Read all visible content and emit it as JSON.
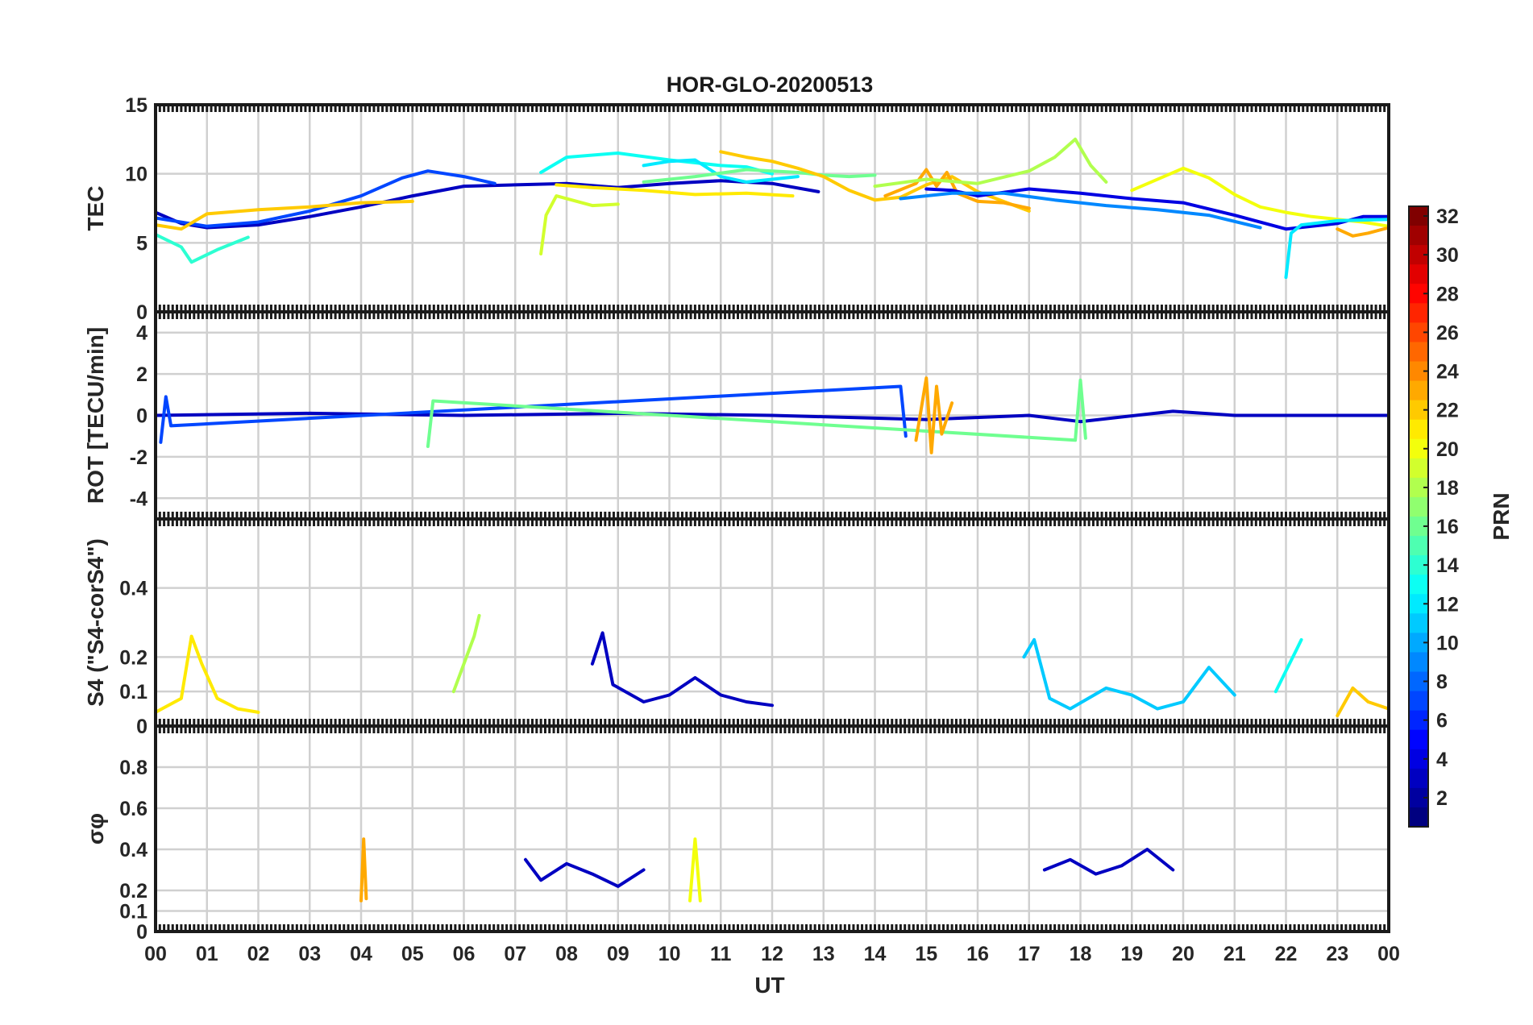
{
  "chart_data": {
    "type": "line",
    "title": "HOR-GLO-20200513",
    "xlabel": "UT",
    "x_range_hours": [
      0,
      24
    ],
    "x_tick_labels": [
      "00",
      "01",
      "02",
      "03",
      "04",
      "05",
      "06",
      "07",
      "08",
      "09",
      "10",
      "11",
      "12",
      "13",
      "14",
      "15",
      "16",
      "17",
      "18",
      "19",
      "20",
      "21",
      "22",
      "23",
      "00"
    ],
    "colorbar": {
      "label": "PRN",
      "range": [
        1,
        32
      ],
      "ticks": [
        2,
        4,
        6,
        8,
        10,
        12,
        14,
        16,
        18,
        20,
        22,
        24,
        26,
        28,
        30,
        32
      ],
      "colormap": "jet"
    },
    "panels": [
      {
        "id": "tec",
        "ylabel": "TEC",
        "ylim": [
          0,
          15
        ],
        "yticks": [
          0,
          5,
          10,
          15
        ],
        "series": [
          {
            "prn": 3,
            "x": [
              0.0,
              0.5,
              1.0,
              2.0,
              3.0,
              4.0,
              5.0,
              6.0,
              7.0,
              8.0,
              9.0,
              10.0,
              11.0,
              12.0,
              12.9
            ],
            "y": [
              7.2,
              6.4,
              6.1,
              6.3,
              6.9,
              7.6,
              8.4,
              9.1,
              9.2,
              9.3,
              9.0,
              9.3,
              9.5,
              9.3,
              8.7
            ]
          },
          {
            "prn": 7,
            "x": [
              0.0,
              1.0,
              2.0,
              3.0,
              4.0,
              4.8,
              5.3,
              6.0,
              6.6
            ],
            "y": [
              6.8,
              6.2,
              6.5,
              7.3,
              8.4,
              9.7,
              10.2,
              9.8,
              9.3
            ]
          },
          {
            "prn": 13,
            "x": [
              7.5,
              8.0,
              9.0,
              10.0,
              11.0,
              11.5,
              12.0
            ],
            "y": [
              10.1,
              11.2,
              11.5,
              11.0,
              10.6,
              10.5,
              10.0
            ]
          },
          {
            "prn": 12,
            "x": [
              9.5,
              10.0,
              10.5,
              11.0,
              11.5,
              12.0,
              12.5
            ],
            "y": [
              10.6,
              10.9,
              11.0,
              9.8,
              9.4,
              9.6,
              9.8
            ]
          },
          {
            "prn": 16,
            "x": [
              9.5,
              10.5,
              11.5,
              12.5,
              13.0,
              13.5,
              14.0
            ],
            "y": [
              9.4,
              9.8,
              10.3,
              10.1,
              9.9,
              9.8,
              9.9
            ]
          },
          {
            "prn": 21,
            "x": [
              7.8,
              8.5,
              9.5,
              10.5,
              11.5,
              12.4
            ],
            "y": [
              9.2,
              9.0,
              8.8,
              8.5,
              8.6,
              8.4
            ]
          },
          {
            "prn": 19,
            "x": [
              7.5,
              7.6,
              7.8,
              8.5,
              9.0
            ],
            "y": [
              4.2,
              7.0,
              8.4,
              7.7,
              7.8
            ]
          },
          {
            "prn": 22,
            "x": [
              11.0,
              11.5,
              12.0,
              12.5,
              13.0,
              13.5,
              14.0,
              14.5,
              15.0,
              15.5,
              16.0,
              16.5,
              17.0
            ],
            "y": [
              11.6,
              11.2,
              10.9,
              10.4,
              9.8,
              8.8,
              8.1,
              8.3,
              9.2,
              9.8,
              8.7,
              8.0,
              7.3
            ]
          },
          {
            "prn": 23,
            "x": [
              14.2,
              14.8,
              15.0,
              15.2,
              15.4,
              15.6,
              16.0,
              16.5,
              17.0
            ],
            "y": [
              8.4,
              9.3,
              10.3,
              9.1,
              10.1,
              8.6,
              8.0,
              7.9,
              7.5
            ]
          },
          {
            "prn": 18,
            "x": [
              14.0,
              15.0,
              16.0,
              17.0,
              17.5,
              17.9,
              18.2,
              18.5
            ],
            "y": [
              9.1,
              9.6,
              9.3,
              10.2,
              11.2,
              12.5,
              10.6,
              9.4
            ]
          },
          {
            "prn": 4,
            "x": [
              15.0,
              15.5,
              16.0,
              17.0,
              18.0,
              19.0,
              20.0,
              21.0,
              22.0,
              23.0,
              23.5,
              24.0
            ],
            "y": [
              8.9,
              8.8,
              8.4,
              8.9,
              8.6,
              8.2,
              7.9,
              7.0,
              6.0,
              6.4,
              6.9,
              6.9
            ]
          },
          {
            "prn": 9,
            "x": [
              14.5,
              15.5,
              16.5,
              17.5,
              18.5,
              19.5,
              20.5,
              21.5
            ],
            "y": [
              8.2,
              8.6,
              8.6,
              8.1,
              7.7,
              7.4,
              7.0,
              6.1
            ]
          },
          {
            "prn": 20,
            "x": [
              19.0,
              20.0,
              20.5,
              21.0,
              21.5,
              22.0,
              22.5,
              23.0,
              23.5,
              24.0
            ],
            "y": [
              8.8,
              10.4,
              9.7,
              8.5,
              7.6,
              7.2,
              6.9,
              6.7,
              6.5,
              6.2
            ]
          },
          {
            "prn": 12,
            "x": [
              22.0,
              22.1,
              22.3,
              23.0,
              24.0
            ],
            "y": [
              2.5,
              5.7,
              6.3,
              6.6,
              6.7
            ]
          },
          {
            "prn": 14,
            "x": [
              0.0,
              0.5,
              0.7,
              1.2,
              1.8
            ],
            "y": [
              5.6,
              4.7,
              3.6,
              4.5,
              5.4
            ]
          },
          {
            "prn": 22,
            "x": [
              0.0,
              0.5,
              1.0,
              2.0,
              3.0,
              4.0,
              5.0
            ],
            "y": [
              6.3,
              6.0,
              7.1,
              7.4,
              7.6,
              7.9,
              8.0
            ]
          },
          {
            "prn": 23,
            "x": [
              23.0,
              23.3,
              23.6,
              24.0
            ],
            "y": [
              6.0,
              5.5,
              5.7,
              6.1
            ]
          }
        ]
      },
      {
        "id": "rot",
        "ylabel": "ROT [TECU/min]",
        "ylim": [
          -5,
          5
        ],
        "yticks": [
          -4,
          -2,
          0,
          2,
          4
        ],
        "series": [
          {
            "prn": 3,
            "x": [
              0,
              3,
              6,
              9,
              12,
              15,
              17,
              18,
              19.8,
              21,
              24
            ],
            "y": [
              0,
              0.1,
              0,
              0.1,
              0,
              -0.2,
              0,
              -0.3,
              0.2,
              0,
              0
            ]
          },
          {
            "prn": 7,
            "x": [
              0.1,
              0.2,
              0.3,
              14.5,
              14.6
            ],
            "y": [
              -1.3,
              0.9,
              -0.5,
              1.4,
              -1.0
            ]
          },
          {
            "prn": 16,
            "x": [
              5.3,
              5.4,
              17.9,
              18.0,
              18.1
            ],
            "y": [
              -1.5,
              0.7,
              -1.2,
              1.7,
              -1.1
            ]
          },
          {
            "prn": 23,
            "x": [
              14.8,
              15.0,
              15.1,
              15.2,
              15.3,
              15.5
            ],
            "y": [
              -1.2,
              1.8,
              -1.8,
              1.4,
              -0.9,
              0.6
            ]
          }
        ]
      },
      {
        "id": "s4",
        "ylabel": "S4 (\"S4-corS4\")",
        "ylim": [
          0,
          0.6
        ],
        "yticks": [
          0,
          0.1,
          0.2,
          0.4
        ],
        "series": [
          {
            "prn": 21,
            "x": [
              0.0,
              0.5,
              0.7,
              0.9,
              1.2,
              1.6,
              2.0
            ],
            "y": [
              0.04,
              0.08,
              0.26,
              0.18,
              0.08,
              0.05,
              0.04
            ]
          },
          {
            "prn": 18,
            "x": [
              5.8,
              6.0,
              6.2,
              6.3
            ],
            "y": [
              0.1,
              0.18,
              0.26,
              0.32
            ]
          },
          {
            "prn": 3,
            "x": [
              8.5,
              8.7,
              8.9,
              9.5,
              10.0,
              10.5,
              11.0,
              11.5,
              12.0
            ],
            "y": [
              0.18,
              0.27,
              0.12,
              0.07,
              0.09,
              0.14,
              0.09,
              0.07,
              0.06
            ]
          },
          {
            "prn": 11,
            "x": [
              16.9,
              17.1,
              17.4,
              17.8,
              18.5,
              19.0,
              19.5,
              20.0,
              20.5,
              21.0
            ],
            "y": [
              0.2,
              0.25,
              0.08,
              0.05,
              0.11,
              0.09,
              0.05,
              0.07,
              0.17,
              0.09
            ]
          },
          {
            "prn": 13,
            "x": [
              21.8,
              22.0,
              22.2,
              22.3
            ],
            "y": [
              0.1,
              0.16,
              0.22,
              0.25
            ]
          },
          {
            "prn": 22,
            "x": [
              23.0,
              23.3,
              23.6,
              24.0
            ],
            "y": [
              0.03,
              0.11,
              0.07,
              0.05
            ]
          }
        ]
      },
      {
        "id": "sigma",
        "ylabel": "σφ",
        "ylim": [
          0,
          1.0
        ],
        "yticks": [
          0,
          0.1,
          0.2,
          0.4,
          0.6,
          0.8
        ],
        "series": [
          {
            "prn": 3,
            "x": [
              7.2,
              7.5,
              8.0,
              8.5,
              9.0,
              9.5
            ],
            "y": [
              0.35,
              0.25,
              0.33,
              0.28,
              0.22,
              0.3
            ]
          },
          {
            "prn": 3,
            "x": [
              17.3,
              17.8,
              18.3,
              18.8,
              19.3,
              19.8
            ],
            "y": [
              0.3,
              0.35,
              0.28,
              0.32,
              0.4,
              0.3
            ]
          },
          {
            "prn": 23,
            "x": [
              4.0,
              4.05,
              4.1
            ],
            "y": [
              0.15,
              0.45,
              0.16
            ]
          },
          {
            "prn": 20,
            "x": [
              10.4,
              10.5,
              10.6
            ],
            "y": [
              0.15,
              0.45,
              0.15
            ]
          }
        ]
      }
    ]
  }
}
